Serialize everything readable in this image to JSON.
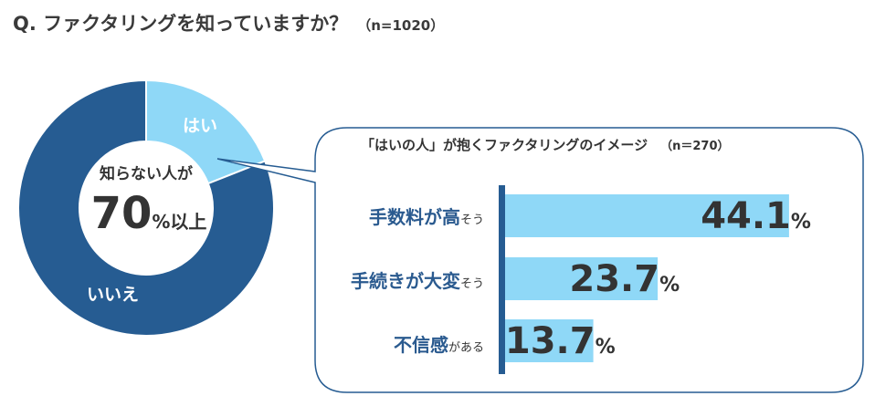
{
  "title": {
    "question": "Q.  ファクタリングを知っていますか？",
    "n": "（n=1020）"
  },
  "chart_data": [
    {
      "type": "pie",
      "slices": [
        {
          "name": "はい",
          "value": 19,
          "color": "#8fd8f7"
        },
        {
          "name": "いいえ",
          "value": 81,
          "color": "#265c92"
        }
      ],
      "center_text": {
        "line1": "知らない人が",
        "big": "70",
        "small": "%以上"
      }
    },
    {
      "type": "bar",
      "title": "「はいの人」が抱くファクタリングのイメージ",
      "n": "（n＝270）",
      "categories": [
        {
          "keyword": "手数料が高",
          "rest": "そう"
        },
        {
          "keyword": "手続きが大変",
          "rest": "そう"
        },
        {
          "keyword": "不信感",
          "rest": "がある"
        }
      ],
      "values": [
        44.1,
        23.7,
        13.7
      ],
      "value_labels": [
        "44.1",
        "23.7",
        "13.7"
      ],
      "unit": "%",
      "bar_color": "#8fd8f7",
      "axis_color": "#265c92",
      "xlim": [
        0,
        50
      ]
    }
  ]
}
